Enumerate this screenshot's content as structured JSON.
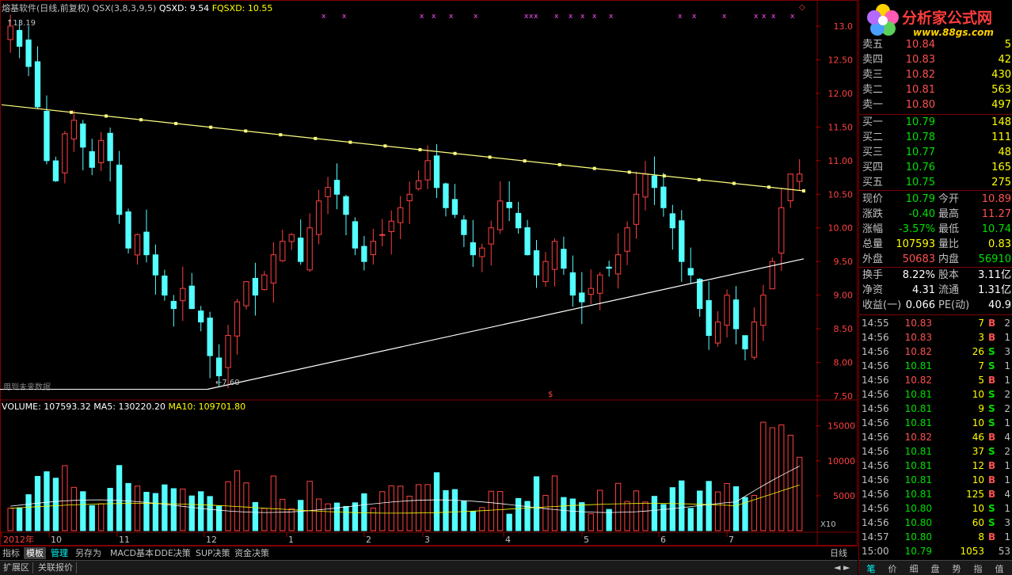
{
  "header": {
    "title": "熔基软件(日线,前复权)",
    "qsx": "QSX(3,8,3,9,5)",
    "qsxd": "QSXD: 9.54",
    "fqsxd": "FQSXD: 10.55",
    "max_label": "13.19",
    "min_label": "7.60",
    "source_note": "用到未来数据",
    "signal_mark": "$"
  },
  "price_axis": [
    "13.0",
    "12.50",
    "12.00",
    "11.50",
    "11.00",
    "10.50",
    "10.00",
    "9.50",
    "9.00",
    "8.50",
    "8.00",
    "7.50"
  ],
  "volume_axis": [
    "15000",
    "10000",
    "5000"
  ],
  "volume_unit": "X10",
  "volume_header": {
    "volume": "VOLUME: 107593.32",
    "ma5": "MA5: 130220.20",
    "ma10": "MA10: 109701.80"
  },
  "month_labels": [
    "2012年",
    "10",
    "11",
    "12",
    "1",
    "2",
    "3",
    "4",
    "5",
    "6",
    "7"
  ],
  "period": "日线",
  "tabs": [
    "指标",
    "模板",
    "管理",
    "另存为",
    "MACD基本",
    "DDE决策",
    "SUP决策",
    "资金决策"
  ],
  "tabs2": [
    "扩展区",
    "关联报价"
  ],
  "logo": {
    "title": "分析家公式网",
    "url": "www.88gs.com"
  },
  "ask": [
    {
      "label": "卖五",
      "price": "10.84",
      "vol": "5"
    },
    {
      "label": "卖四",
      "price": "10.83",
      "vol": "42"
    },
    {
      "label": "卖三",
      "price": "10.82",
      "vol": "430"
    },
    {
      "label": "卖二",
      "price": "10.81",
      "vol": "563"
    },
    {
      "label": "卖一",
      "price": "10.80",
      "vol": "497"
    }
  ],
  "bid": [
    {
      "label": "买一",
      "price": "10.79",
      "vol": "148"
    },
    {
      "label": "买二",
      "price": "10.78",
      "vol": "111"
    },
    {
      "label": "买三",
      "price": "10.77",
      "vol": "48"
    },
    {
      "label": "买四",
      "price": "10.76",
      "vol": "165"
    },
    {
      "label": "买五",
      "price": "10.75",
      "vol": "275"
    }
  ],
  "quote": [
    {
      "l1": "现价",
      "v1": "10.79",
      "l2": "今开",
      "v2": "10.89",
      "c1": "dn",
      "c2": "up"
    },
    {
      "l1": "涨跌",
      "v1": "-0.40",
      "l2": "最高",
      "v2": "11.27",
      "c1": "dn",
      "c2": "up"
    },
    {
      "l1": "涨幅",
      "v1": "-3.57%",
      "l2": "最低",
      "v2": "10.74",
      "c1": "dn",
      "c2": "dn"
    },
    {
      "l1": "总量",
      "v1": "107593",
      "l2": "量比",
      "v2": "0.83",
      "c1": "yl",
      "c2": "yl"
    },
    {
      "l1": "外盘",
      "v1": "50683",
      "l2": "内盘",
      "v2": "56910",
      "c1": "up",
      "c2": "dn"
    }
  ],
  "fundamentals": [
    {
      "l1": "换手",
      "v1": "8.22%",
      "l2": "股本",
      "v2": "3.11亿"
    },
    {
      "l1": "净资",
      "v1": "4.31",
      "l2": "流通",
      "v2": "1.31亿"
    },
    {
      "l1": "收益(一)",
      "v1": "0.066",
      "l2": "PE(动)",
      "v2": "40.9"
    }
  ],
  "ticks": [
    {
      "t": "14:55",
      "p": "10.83",
      "v": "7",
      "s": "B",
      "n": "2"
    },
    {
      "t": "14:56",
      "p": "10.83",
      "v": "3",
      "s": "B",
      "n": "1"
    },
    {
      "t": "14:56",
      "p": "10.82",
      "v": "26",
      "s": "S",
      "n": "3"
    },
    {
      "t": "14:56",
      "p": "10.81",
      "v": "7",
      "s": "S",
      "n": "1"
    },
    {
      "t": "14:56",
      "p": "10.82",
      "v": "5",
      "s": "B",
      "n": "1"
    },
    {
      "t": "14:56",
      "p": "10.81",
      "v": "10",
      "s": "S",
      "n": "2"
    },
    {
      "t": "14:56",
      "p": "10.81",
      "v": "9",
      "s": "S",
      "n": "2"
    },
    {
      "t": "14:56",
      "p": "10.81",
      "v": "10",
      "s": "S",
      "n": "1"
    },
    {
      "t": "14:56",
      "p": "10.82",
      "v": "46",
      "s": "B",
      "n": "4"
    },
    {
      "t": "14:56",
      "p": "10.81",
      "v": "37",
      "s": "S",
      "n": "2"
    },
    {
      "t": "14:56",
      "p": "10.81",
      "v": "12",
      "s": "B",
      "n": "1"
    },
    {
      "t": "14:56",
      "p": "10.81",
      "v": "10",
      "s": "B",
      "n": "1"
    },
    {
      "t": "14:56",
      "p": "10.81",
      "v": "125",
      "s": "B",
      "n": "4"
    },
    {
      "t": "14:56",
      "p": "10.80",
      "v": "10",
      "s": "S",
      "n": "1"
    },
    {
      "t": "14:56",
      "p": "10.80",
      "v": "60",
      "s": "S",
      "n": "3"
    },
    {
      "t": "14:57",
      "p": "10.80",
      "v": "8",
      "s": "B",
      "n": "1"
    },
    {
      "t": "15:00",
      "p": "10.79",
      "v": "1053",
      "s": "",
      "n": "53"
    }
  ],
  "right_tabs": [
    "笔",
    "价",
    "细",
    "盘",
    "势",
    "指",
    "值"
  ],
  "colors": {
    "up": "#ff4040",
    "down": "#54ffff",
    "border": "#800000",
    "trend_upper": "#ffff80",
    "trend_lower": "#ffffff"
  },
  "chart_data": {
    "type": "candlestick",
    "y_range": [
      7.5,
      13.2
    ],
    "upper_trendline": {
      "start": 11.83,
      "end": 10.55
    },
    "lower_trendline": {
      "start": 7.6,
      "end": 9.54
    },
    "closes": [
      13.0,
      12.7,
      12.4,
      11.8,
      11.0,
      10.7,
      11.4,
      11.6,
      11.2,
      10.9,
      11.3,
      11.0,
      10.2,
      9.7,
      9.9,
      9.6,
      9.3,
      9.0,
      8.8,
      9.1,
      8.8,
      8.6,
      8.1,
      7.8,
      8.4,
      8.9,
      9.2,
      9.0,
      9.3,
      9.6,
      9.8,
      9.9,
      9.5,
      10.0,
      10.4,
      10.6,
      10.5,
      10.2,
      9.7,
      9.5,
      9.8,
      9.9,
      10.1,
      10.3,
      10.5,
      10.7,
      11.0,
      10.6,
      10.3,
      10.2,
      9.9,
      9.6,
      9.7,
      10.0,
      10.4,
      10.3,
      10.0,
      9.6,
      9.3,
      9.5,
      9.8,
      9.4,
      9.0,
      8.9,
      9.1,
      9.3,
      9.4,
      9.6,
      10.0,
      10.5,
      10.8,
      10.6,
      10.3,
      10.0,
      9.5,
      9.3,
      8.8,
      8.4,
      8.6,
      9.0,
      8.5,
      8.2,
      8.6,
      9.0,
      9.5,
      10.3,
      10.8,
      10.8
    ]
  }
}
